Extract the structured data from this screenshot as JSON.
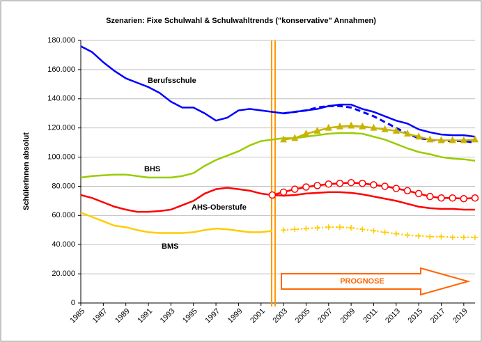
{
  "chart_data": {
    "type": "line",
    "title": "Szenarien: Fixe Schulwahl & Schulwahltrends (\"konservative\" Annahmen)",
    "y_label": "SchülerInnen absolut",
    "annotation": "PROGNOSE",
    "x": [
      1985,
      1986,
      1987,
      1988,
      1989,
      1990,
      1991,
      1992,
      1993,
      1994,
      1995,
      1996,
      1997,
      1998,
      1999,
      2000,
      2001,
      2002,
      2003,
      2004,
      2005,
      2006,
      2007,
      2008,
      2009,
      2010,
      2011,
      2012,
      2013,
      2014,
      2015,
      2016,
      2017,
      2018,
      2019,
      2020
    ],
    "xlim": [
      1985,
      2020
    ],
    "xticks": [
      1985,
      1987,
      1989,
      1991,
      1993,
      1995,
      1997,
      1999,
      2001,
      2003,
      2005,
      2007,
      2009,
      2011,
      2013,
      2015,
      2017,
      2019
    ],
    "ylim": [
      0,
      180000
    ],
    "yticks": [
      0,
      {
        "value": 20000,
        "label": "20.000"
      },
      {
        "value": 40000,
        "label": "40.000"
      },
      {
        "value": 60000,
        "label": "60.000"
      },
      {
        "value": 80000,
        "label": "80.000"
      },
      {
        "value": 100000,
        "label": "100.000"
      },
      {
        "value": 120000,
        "label": "120.000"
      },
      {
        "value": 140000,
        "label": "140.000"
      },
      {
        "value": 160000,
        "label": "160.000"
      },
      {
        "value": 180000,
        "label": "180.000"
      }
    ],
    "grid": true,
    "series": [
      {
        "name": "Berufsschule",
        "color": "#0000ff",
        "values": [
          176000,
          172000,
          165000,
          159000,
          154000,
          151000,
          148000,
          144000,
          138000,
          134000,
          134000,
          130000,
          125000,
          127000,
          132000,
          133000,
          132000,
          131000,
          130000,
          131000,
          132000,
          133000,
          135000,
          136000,
          136000,
          133000,
          131000,
          128000,
          125000,
          123000,
          119000,
          117000,
          115500,
          115000,
          115000,
          114000
        ]
      },
      {
        "color": "#0000ff",
        "dash": true,
        "values": [
          null,
          null,
          null,
          null,
          null,
          null,
          null,
          null,
          null,
          null,
          null,
          null,
          null,
          null,
          null,
          null,
          null,
          null,
          130000,
          131000,
          132000,
          134000,
          135000,
          135000,
          134000,
          131000,
          128000,
          124000,
          120000,
          116000,
          113000,
          112000,
          111000,
          111000,
          111000,
          110000
        ]
      },
      {
        "name": "BHS",
        "color": "#99cc00",
        "values": [
          86000,
          87000,
          87500,
          88000,
          88000,
          87000,
          86000,
          86000,
          86000,
          87000,
          89000,
          94000,
          98000,
          101000,
          104000,
          108000,
          111000,
          112000,
          113000,
          113000,
          114000,
          115000,
          116000,
          116500,
          116500,
          116000,
          114000,
          112000,
          109000,
          106000,
          103500,
          102000,
          100000,
          99000,
          98500,
          97500
        ]
      },
      {
        "color": "#c8b400",
        "marker": "triangle",
        "values": [
          null,
          null,
          null,
          null,
          null,
          null,
          null,
          null,
          null,
          null,
          null,
          null,
          null,
          null,
          null,
          null,
          null,
          null,
          112000,
          113000,
          116000,
          118000,
          120000,
          121000,
          121500,
          121000,
          120000,
          119000,
          118000,
          116000,
          114000,
          112000,
          111500,
          111500,
          111500,
          112000
        ]
      },
      {
        "name": "AHS-Oberstufe",
        "color": "#ff0000",
        "values": [
          74000,
          72000,
          69000,
          66000,
          64000,
          62500,
          62500,
          63000,
          64000,
          67000,
          70000,
          75000,
          78000,
          79000,
          78000,
          77000,
          75000,
          74000,
          73500,
          74000,
          75000,
          75500,
          76000,
          76000,
          75500,
          74500,
          73000,
          71500,
          70000,
          68000,
          66000,
          65000,
          64500,
          64500,
          64000,
          64000
        ]
      },
      {
        "color": "#ff0000",
        "marker": "circle",
        "values": [
          null,
          null,
          null,
          null,
          null,
          null,
          null,
          null,
          null,
          null,
          null,
          null,
          null,
          null,
          null,
          null,
          null,
          74000,
          76000,
          78000,
          79500,
          80500,
          81500,
          82000,
          82500,
          82000,
          81000,
          80000,
          78500,
          77000,
          75000,
          73000,
          72000,
          72000,
          71500,
          72000
        ]
      },
      {
        "name": "BMS",
        "color": "#ffcc00",
        "values": [
          62000,
          59000,
          56000,
          53000,
          52000,
          50000,
          48500,
          48000,
          48000,
          48000,
          48500,
          50000,
          51000,
          50500,
          49500,
          48500,
          48500,
          49500,
          null,
          null,
          null,
          null,
          null,
          null,
          null,
          null,
          null,
          null,
          null,
          null,
          null,
          null,
          null,
          null,
          null,
          null
        ]
      },
      {
        "color": "#ffcc00",
        "marker": "plus",
        "values": [
          null,
          null,
          null,
          null,
          null,
          null,
          null,
          null,
          null,
          null,
          null,
          null,
          null,
          null,
          null,
          null,
          null,
          null,
          50000,
          50500,
          51000,
          51500,
          52000,
          52000,
          51500,
          50500,
          49500,
          48500,
          47500,
          46500,
          46000,
          45500,
          45500,
          45000,
          45000,
          45000
        ]
      }
    ]
  }
}
